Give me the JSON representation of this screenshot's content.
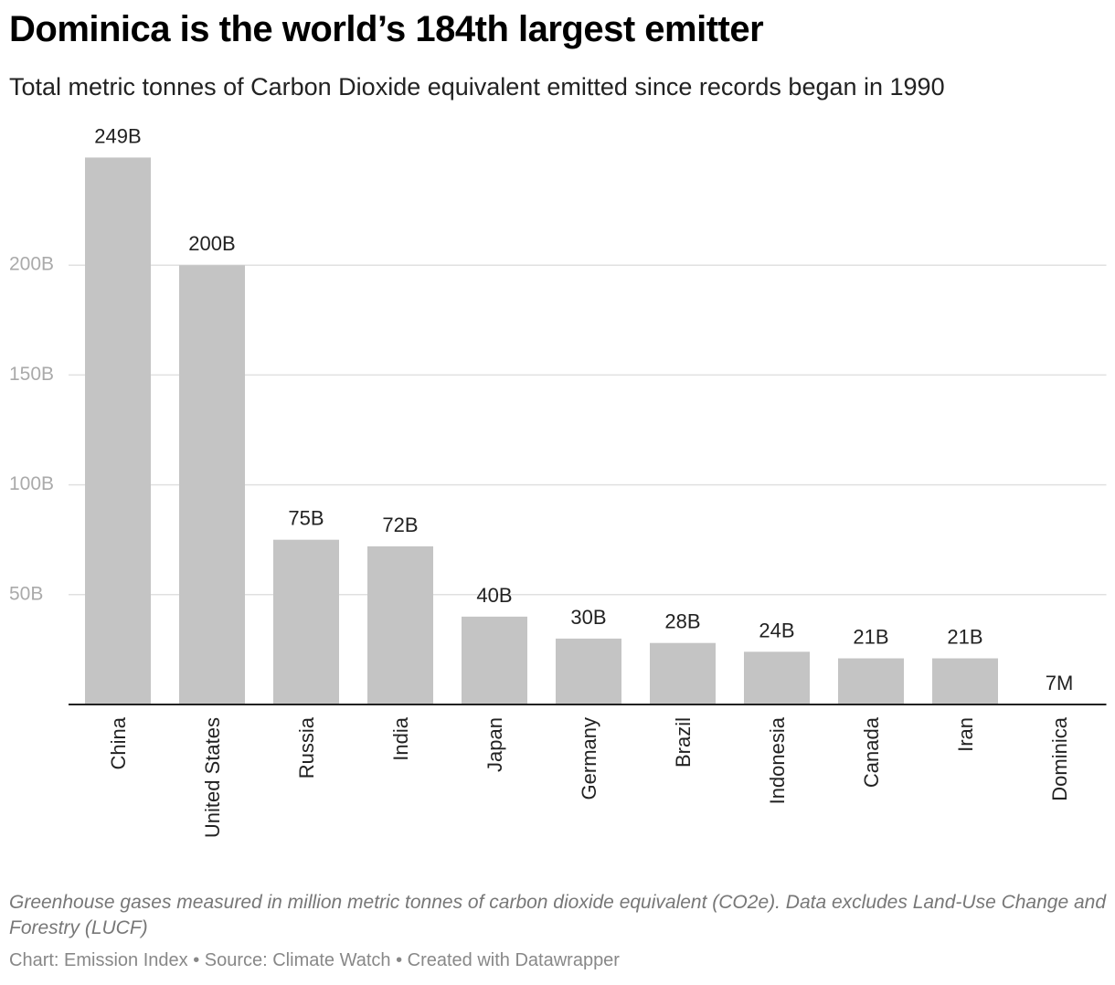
{
  "chart_data": {
    "type": "bar",
    "title": "Dominica is the world’s 184th largest emitter",
    "subtitle": "Total metric tonnes of Carbon Dioxide equivalent emitted since records began in 1990",
    "categories": [
      "China",
      "United States",
      "Russia",
      "India",
      "Japan",
      "Germany",
      "Brazil",
      "Indonesia",
      "Canada",
      "Iran",
      "Dominica"
    ],
    "values": [
      249,
      200,
      75,
      72,
      40,
      30,
      28,
      24,
      21,
      21,
      0.007
    ],
    "value_labels": [
      "249B",
      "200B",
      "75B",
      "72B",
      "40B",
      "30B",
      "28B",
      "24B",
      "21B",
      "21B",
      "7M"
    ],
    "color": "#c4c4c4",
    "ylim": [
      0,
      250
    ],
    "yticks": [
      {
        "value": 50,
        "label": "50B"
      },
      {
        "value": 100,
        "label": "100B"
      },
      {
        "value": 150,
        "label": "150B"
      },
      {
        "value": 200,
        "label": "200B"
      }
    ],
    "grid": true,
    "notes": "Greenhouse gases measured in million metric tonnes of carbon dioxide equivalent (CO2e). Data excludes Land-Use Change and Forestry (LUCF)",
    "source": "Chart: Emission Index • Source: Climate Watch • Created with Datawrapper"
  }
}
